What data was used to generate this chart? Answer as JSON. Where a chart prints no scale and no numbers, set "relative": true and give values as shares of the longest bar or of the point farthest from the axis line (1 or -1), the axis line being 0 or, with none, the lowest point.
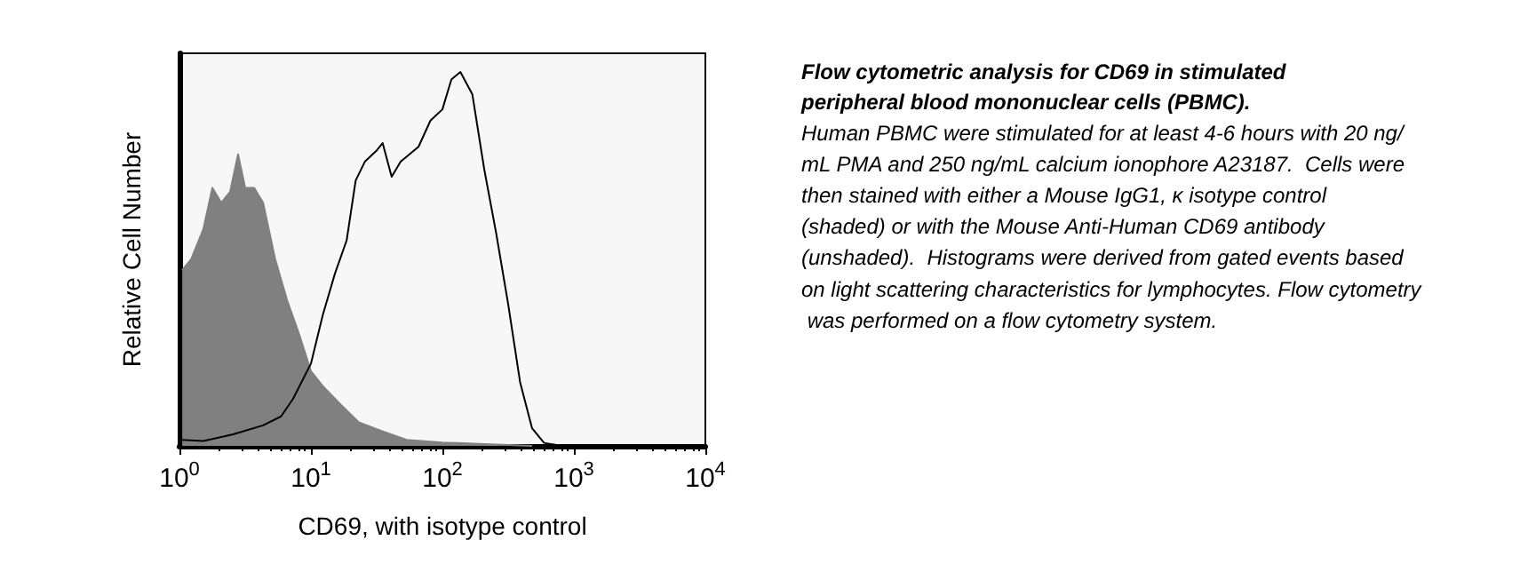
{
  "chart_data": {
    "type": "area",
    "title": "Flow cytometric analysis for CD69 in stimulated peripheral blood mononuclear cells (PBMC).",
    "annotations": [
      "Human PBMC were stimulated for at least 4-6 hours with 20 ng/mL PMA and 250 ng/mL calcium ionophore A23187.  Cells were then stained with either a Mouse IgG1, κ isotype control (shaded) or with the Mouse Anti-Human CD69 antibody (unshaded).  Histograms were derived from gated events based on light scattering characteristics for lymphocytes. Flow cytometry was performed on a flow cytometry system."
    ],
    "xlabel": "CD69, with isotype control",
    "ylabel": "Relative Cell Number",
    "relative": true,
    "log": "x",
    "xlim": [
      1,
      10000
    ],
    "xticks": [
      {
        "value": 1,
        "label": "10$^{0}$"
      },
      {
        "value": 10,
        "label": "10$^{1}$"
      },
      {
        "value": 100,
        "label": "10$^{2}$"
      },
      {
        "value": 1000,
        "label": "10$^{3}$"
      },
      {
        "value": 10000,
        "label": "10$^{4}$"
      }
    ],
    "grid": false,
    "series": [
      {
        "type": "area",
        "color": "#808080",
        "x": [
          1.05,
          1.23,
          1.52,
          1.78,
          2.08,
          2.43,
          2.79,
          3.16,
          3.7,
          4.33,
          5.34,
          6.58,
          8.11,
          10,
          12.3,
          16.9,
          23.1,
          35.1,
          53.4,
          100,
          285,
          481
        ],
        "values": [
          0.47,
          0.5,
          0.58,
          0.69,
          0.65,
          0.68,
          0.78,
          0.69,
          0.69,
          0.65,
          0.5,
          0.39,
          0.3,
          0.2,
          0.16,
          0.11,
          0.063,
          0.039,
          0.016,
          0.009,
          0.003,
          0
        ]
      },
      {
        "type": "line",
        "color": "#000000",
        "x": [
          1.05,
          1.52,
          2.56,
          4.33,
          5.93,
          7.31,
          10,
          12.3,
          15.2,
          18.7,
          21.9,
          25.7,
          31.6,
          35.1,
          41.1,
          48.1,
          65.8,
          81.1,
          100,
          117,
          137,
          169,
          208,
          256,
          316,
          390,
          481,
          593,
          811
        ],
        "values": [
          0.016,
          0.013,
          0.031,
          0.055,
          0.079,
          0.126,
          0.22,
          0.35,
          0.46,
          0.55,
          0.71,
          0.76,
          0.79,
          0.81,
          0.72,
          0.76,
          0.8,
          0.87,
          0.9,
          0.98,
          1,
          0.94,
          0.74,
          0.57,
          0.38,
          0.17,
          0.047,
          0.008,
          0
        ]
      }
    ]
  }
}
